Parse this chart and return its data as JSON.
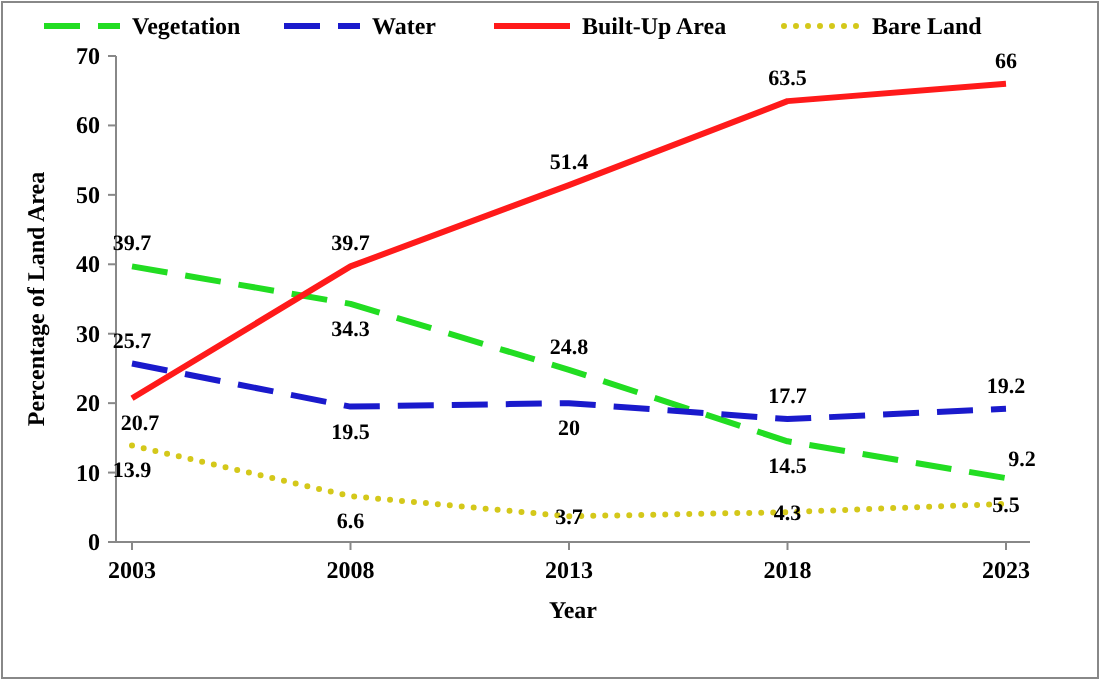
{
  "chart_data": {
    "type": "line",
    "xlabel": "Year",
    "ylabel": "Percentage of Land Area",
    "categories": [
      "2003",
      "2008",
      "2013",
      "2018",
      "2023"
    ],
    "series": [
      {
        "name": "Vegetation",
        "color": "#22dd22",
        "line_style": "dashed",
        "values": [
          39.7,
          34.3,
          24.8,
          14.5,
          9.2
        ]
      },
      {
        "name": "Water",
        "color": "#1a1acc",
        "line_style": "dashed",
        "values": [
          25.7,
          19.5,
          20,
          17.7,
          19.2
        ]
      },
      {
        "name": "Built-Up Area",
        "color": "#ff1a1a",
        "line_style": "solid",
        "values": [
          20.7,
          39.7,
          51.4,
          63.5,
          66
        ]
      },
      {
        "name": "Bare Land",
        "color": "#d4c81a",
        "line_style": "dotted",
        "values": [
          13.9,
          6.6,
          3.7,
          4.3,
          5.5
        ]
      }
    ],
    "ylim": [
      0,
      70
    ],
    "yticks": [
      0,
      10,
      20,
      30,
      40,
      50,
      60,
      70
    ],
    "grid": false,
    "legend": "top",
    "data_labels": true,
    "marker": "none"
  }
}
